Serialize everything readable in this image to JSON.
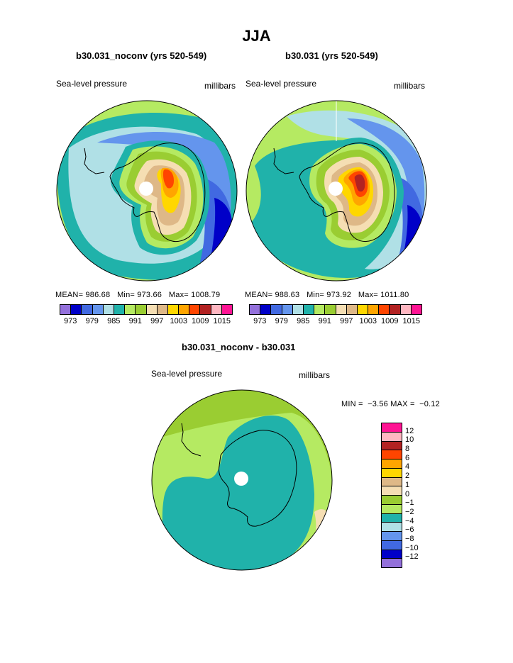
{
  "page_title": "JJA",
  "colors": {
    "c973": "#9370db",
    "c976": "#0000c8",
    "c979": "#4169e1",
    "c982": "#6495ed",
    "c985": "#b0e0e6",
    "c988": "#20b2aa",
    "c991": "#b5ea62",
    "c994": "#9acd32",
    "c997": "#f5deb3",
    "c1000": "#deb887",
    "c1003": "#ffd700",
    "c1006": "#ffa500",
    "c1009": "#ff4500",
    "c1012": "#b22222",
    "c1015": "#ffb6c1",
    "c1018": "#ff1493",
    "land_outline": "#000000",
    "pole_marker": "#ffffff"
  },
  "panel_left": {
    "title": "b30.031_noconv (yrs 520-549)",
    "variable": "Sea-level pressure",
    "units": "millibars",
    "stats": "MEAN= 986.68   Min= 973.66   Max= 1008.79"
  },
  "panel_right": {
    "title": "b30.031 (yrs 520-549)",
    "variable": "Sea-level pressure",
    "units": "millibars",
    "stats": "MEAN= 988.63   Min= 973.92   Max= 1011.80"
  },
  "colorbar_mean": {
    "tick_labels": [
      "973",
      "979",
      "985",
      "991",
      "997",
      "1003",
      "1009",
      "1015"
    ]
  },
  "panel_diff": {
    "title": "b30.031_noconv - b30.031",
    "variable": "Sea-level pressure",
    "units": "millibars",
    "stats": "MIN =  −3.56 MAX =  −0.12"
  },
  "colorbar_diff": {
    "tick_labels": [
      "12",
      "10",
      "8",
      "6",
      "4",
      "2",
      "1",
      "0",
      "−1",
      "−2",
      "−4",
      "−6",
      "−8",
      "−10",
      "−12"
    ]
  },
  "chart_data": [
    {
      "type": "heatmap",
      "projection": "south polar stereographic",
      "title": "b30.031_noconv (yrs 520-549)",
      "variable": "Sea-level pressure",
      "units": "millibars",
      "season": "JJA",
      "mean": 986.68,
      "min": 973.66,
      "max": 1008.79,
      "contour_levels": [
        973,
        976,
        979,
        982,
        985,
        988,
        991,
        994,
        997,
        1000,
        1003,
        1006,
        1009,
        1012,
        1015
      ]
    },
    {
      "type": "heatmap",
      "projection": "south polar stereographic",
      "title": "b30.031 (yrs 520-549)",
      "variable": "Sea-level pressure",
      "units": "millibars",
      "season": "JJA",
      "mean": 988.63,
      "min": 973.92,
      "max": 1011.8,
      "contour_levels": [
        973,
        976,
        979,
        982,
        985,
        988,
        991,
        994,
        997,
        1000,
        1003,
        1006,
        1009,
        1012,
        1015
      ]
    },
    {
      "type": "heatmap",
      "projection": "south polar stereographic",
      "title": "b30.031_noconv - b30.031",
      "variable": "Sea-level pressure",
      "units": "millibars",
      "season": "JJA",
      "min": -3.56,
      "max": -0.12,
      "contour_levels": [
        -12,
        -10,
        -8,
        -6,
        -4,
        -2,
        -1,
        0,
        1,
        2,
        4,
        6,
        8,
        10,
        12
      ]
    }
  ]
}
